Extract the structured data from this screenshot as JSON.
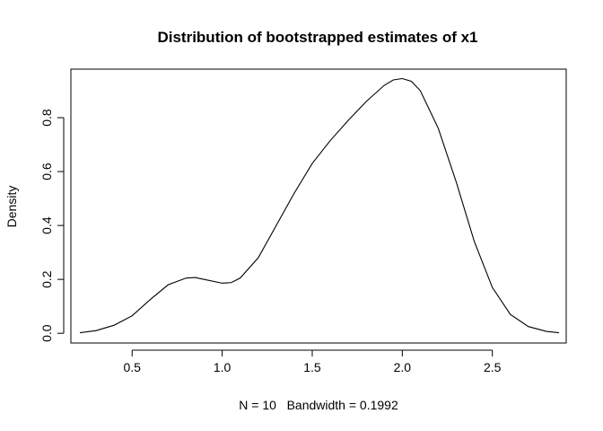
{
  "chart_data": {
    "type": "line",
    "title": "Distribution of bootstrapped estimates of x1",
    "xlabel": "N = 10   Bandwidth = 0.1992",
    "ylabel": "Density",
    "xlim": [
      0.16,
      2.91
    ],
    "ylim": [
      -0.036,
      0.98
    ],
    "x_ticks": [
      0.5,
      1.0,
      1.5,
      2.0,
      2.5
    ],
    "x_tick_labels": [
      "0.5",
      "1.0",
      "1.5",
      "2.0",
      "2.5"
    ],
    "y_ticks": [
      0.0,
      0.2,
      0.4,
      0.6,
      0.8
    ],
    "y_tick_labels": [
      "0.0",
      "0.2",
      "0.4",
      "0.6",
      "0.8"
    ],
    "grid": false,
    "legend": "none",
    "series": [
      {
        "x": [
          0.21,
          0.3,
          0.4,
          0.5,
          0.6,
          0.7,
          0.8,
          0.85,
          0.9,
          1.0,
          1.05,
          1.1,
          1.2,
          1.3,
          1.4,
          1.5,
          1.6,
          1.7,
          1.8,
          1.9,
          1.95,
          2.0,
          2.05,
          2.1,
          2.2,
          2.3,
          2.4,
          2.5,
          2.6,
          2.7,
          2.8,
          2.87
        ],
        "y": [
          0.002,
          0.01,
          0.03,
          0.065,
          0.125,
          0.18,
          0.205,
          0.207,
          0.2,
          0.186,
          0.188,
          0.205,
          0.28,
          0.4,
          0.52,
          0.63,
          0.715,
          0.79,
          0.86,
          0.92,
          0.94,
          0.945,
          0.935,
          0.9,
          0.76,
          0.56,
          0.34,
          0.17,
          0.07,
          0.025,
          0.007,
          0.002
        ]
      }
    ]
  }
}
